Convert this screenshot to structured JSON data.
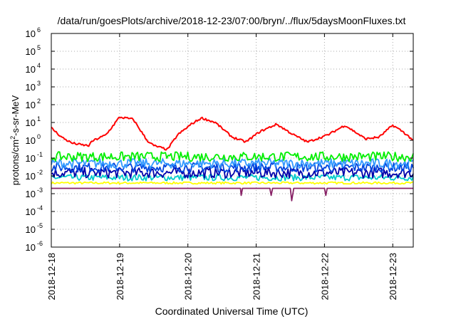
{
  "chart_data": {
    "type": "line",
    "title": "/data/run/goesPlots/archive/2018-12-23/07:00/bryn/../flux/5daysMoonFluxes.txt",
    "xlabel": "Coordinated Universal Time (UTC)",
    "ylabel": "protons/cm²-s-sr-MeV",
    "yscale": "log",
    "ylim": [
      1e-06,
      1000000.0
    ],
    "xlim": [
      "2018-12-18T00:00",
      "2018-12-23T07:00"
    ],
    "grid": true,
    "legend": "none",
    "x_ticks": [
      "2018-12-18",
      "2018-12-19",
      "2018-12-20",
      "2018-12-21",
      "2018-12-22",
      "2018-12-23"
    ],
    "y_ticks": [
      {
        "base": "10",
        "exp": "-6"
      },
      {
        "base": "10",
        "exp": "-5"
      },
      {
        "base": "10",
        "exp": "-4"
      },
      {
        "base": "10",
        "exp": "-3"
      },
      {
        "base": "10",
        "exp": "-2"
      },
      {
        "base": "10",
        "exp": "-1"
      },
      {
        "base": "10",
        "exp": "0"
      },
      {
        "base": "10",
        "exp": "1"
      },
      {
        "base": "10",
        "exp": "2"
      },
      {
        "base": "10",
        "exp": "3"
      },
      {
        "base": "10",
        "exp": "4"
      },
      {
        "base": "10",
        "exp": "5"
      },
      {
        "base": "10",
        "exp": "6"
      }
    ],
    "series": [
      {
        "color": "#ff0000",
        "x_days": [
          0,
          0.15,
          0.3,
          0.45,
          0.55,
          0.6,
          0.8,
          1.0,
          1.2,
          1.35,
          1.4,
          1.5,
          1.7,
          1.85,
          2.05,
          2.2,
          2.4,
          2.65,
          2.85,
          3.05,
          3.3,
          3.55,
          3.75,
          4.05,
          4.3,
          4.6,
          4.8,
          5.0,
          5.15,
          5.3
        ],
        "values": [
          5,
          1.5,
          0.7,
          0.55,
          0.5,
          0.9,
          2,
          20,
          15,
          2,
          1,
          0.5,
          0.3,
          2,
          8,
          18,
          10,
          1.5,
          0.8,
          3,
          8,
          2,
          0.8,
          2,
          7,
          1.2,
          1.5,
          7,
          3,
          1
        ]
      },
      {
        "color": "#00ee00",
        "x_days": [
          0,
          5.3
        ],
        "values": [
          0.12,
          0.12
        ],
        "jitter": 0.45
      },
      {
        "color": "#3399ff",
        "x_days": [
          0,
          5.3
        ],
        "values": [
          0.05,
          0.05
        ],
        "jitter": 0.45
      },
      {
        "color": "#0044dd",
        "x_days": [
          0,
          5.3
        ],
        "values": [
          0.03,
          0.03
        ],
        "jitter": 0.45
      },
      {
        "color": "#0000aa",
        "x_days": [
          0,
          5.3
        ],
        "values": [
          0.015,
          0.015
        ],
        "jitter": 0.5
      },
      {
        "color": "#00cccc",
        "x_days": [
          0,
          5.3
        ],
        "values": [
          0.008,
          0.008
        ],
        "jitter": 0.3
      },
      {
        "color": "#ffff00",
        "x_days": [
          0,
          5.3
        ],
        "values": [
          0.004,
          0.004
        ],
        "jitter": 0.1
      },
      {
        "color": "#882266",
        "x_days": [
          0,
          0.3,
          0.3,
          0.32,
          2.77,
          2.78,
          2.8,
          3.2,
          3.22,
          3.24,
          3.5,
          3.52,
          3.55,
          3.75,
          4.0,
          4.02,
          4.04,
          5.3
        ],
        "values": [
          0.002,
          0.002,
          0.002,
          0.002,
          0.002,
          0.0008,
          0.002,
          0.002,
          0.0008,
          0.002,
          0.002,
          0.0004,
          0.002,
          0.002,
          0.002,
          0.0008,
          0.002,
          0.002
        ]
      }
    ]
  }
}
